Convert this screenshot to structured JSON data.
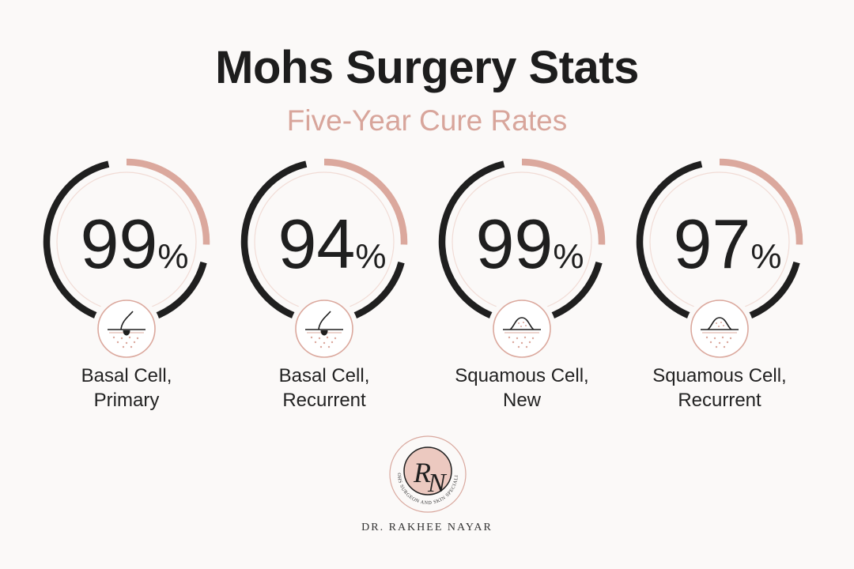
{
  "title": "Mohs Surgery Stats",
  "subtitle": "Five-Year Cure Rates",
  "colors": {
    "dark": "#1f1f1f",
    "accent": "#dba89d",
    "light_ring": "#f1dcd6",
    "icon_ring": "#dba89d"
  },
  "chart_data": {
    "type": "donut",
    "title": "Mohs Surgery Stats",
    "subtitle": "Five-Year Cure Rates",
    "categories": [
      "Basal Cell, Primary",
      "Basal Cell, Recurrent",
      "Squamous Cell, New",
      "Squamous Cell, Recurrent"
    ],
    "values": [
      99,
      94,
      99,
      97
    ],
    "unit": "%",
    "items": [
      {
        "value": 99,
        "unit": "%",
        "label_line1": "Basal Cell,",
        "label_line2": "Primary",
        "icon": "hair-follicle-icon"
      },
      {
        "value": 94,
        "unit": "%",
        "label_line1": "Basal Cell,",
        "label_line2": "Recurrent",
        "icon": "hair-follicle-icon"
      },
      {
        "value": 99,
        "unit": "%",
        "label_line1": "Squamous Cell,",
        "label_line2": "New",
        "icon": "skin-lesion-icon"
      },
      {
        "value": 97,
        "unit": "%",
        "label_line1": "Squamous Cell,",
        "label_line2": "Recurrent",
        "icon": "skin-lesion-icon"
      }
    ]
  },
  "logo": {
    "monogram": "RN",
    "tagline": "MOHS SURGEON AND SKIN SPECIALIST",
    "name": "DR. RAKHEE NAYAR"
  }
}
